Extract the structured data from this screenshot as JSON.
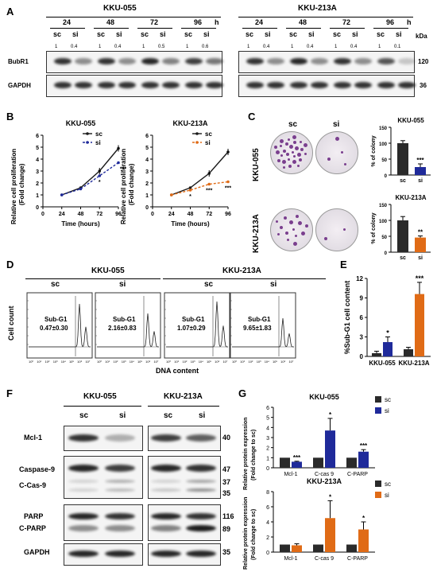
{
  "panels": {
    "A": "A",
    "B": "B",
    "C": "C",
    "D": "D",
    "E": "E",
    "F": "F",
    "G": "G"
  },
  "colors": {
    "sc": "#1a1a1a",
    "si_055": "#1f2a9a",
    "si_213": "#e06b16",
    "colony": "#7a3f8e"
  },
  "panelA": {
    "cell1": "KKU-055",
    "cell2": "KKU-213A",
    "times": [
      "24",
      "48",
      "72",
      "96"
    ],
    "h": "h",
    "sc": "sc",
    "si": "si",
    "kda": "kDa",
    "quant1": [
      "1",
      "0.4",
      "1",
      "0.4",
      "1",
      "0.5",
      "1",
      "0.6"
    ],
    "quant2": [
      "1",
      "0.4",
      "1",
      "0.4",
      "1",
      "0.4",
      "1",
      "0.1"
    ],
    "bubr1": "BubR1",
    "gapdh": "GAPDH",
    "kda_bubr1": "120",
    "kda_gapdh": "36"
  },
  "panelB": {
    "ylabel_1": "Relative cell proliferation",
    "ylabel_2": "(Fold change)",
    "xlabel": "Time (hours)",
    "chart_data": [
      {
        "type": "line",
        "title": "KKU-055",
        "x": [
          24,
          48,
          72,
          96
        ],
        "series": [
          {
            "name": "sc",
            "values": [
              1,
              1.6,
              3.0,
              4.9
            ]
          },
          {
            "name": "si",
            "values": [
              1,
              1.5,
              2.6,
              3.7
            ]
          }
        ],
        "ylim": [
          0,
          6
        ],
        "xticks": [
          "0",
          "24",
          "48",
          "72",
          "96"
        ],
        "yticks": [
          "0",
          "1",
          "2",
          "3",
          "4",
          "5",
          "6"
        ],
        "stars": [
          "*",
          "***"
        ]
      },
      {
        "type": "line",
        "title": "KKU-213A",
        "x": [
          24,
          48,
          72,
          96
        ],
        "series": [
          {
            "name": "sc",
            "values": [
              1,
              1.6,
              2.8,
              4.6
            ]
          },
          {
            "name": "si",
            "values": [
              1,
              1.4,
              1.9,
              2.1
            ]
          }
        ],
        "ylim": [
          0,
          6
        ],
        "xticks": [
          "0",
          "24",
          "48",
          "72",
          "96"
        ],
        "yticks": [
          "0",
          "1",
          "2",
          "3",
          "4",
          "5",
          "6"
        ],
        "stars": [
          "*",
          "***",
          "***"
        ]
      }
    ]
  },
  "panelC": {
    "sc": "sc",
    "si": "si",
    "row1": "KKU-055",
    "row2": "KKU-213A",
    "ylabel": "% of colony",
    "chart_data": [
      {
        "type": "bar",
        "title": "KKU-055",
        "categories": [
          "sc",
          "si"
        ],
        "values": [
          100,
          25
        ],
        "errors": [
          8,
          10
        ],
        "ylim": [
          0,
          150
        ],
        "yticks": [
          "0",
          "50",
          "100",
          "150"
        ],
        "star": "***"
      },
      {
        "type": "bar",
        "title": "KKU-213A",
        "categories": [
          "sc",
          "si"
        ],
        "values": [
          100,
          46
        ],
        "errors": [
          12,
          5
        ],
        "ylim": [
          0,
          150
        ],
        "yticks": [
          "0",
          "50",
          "100",
          "150"
        ],
        "star": "**"
      }
    ]
  },
  "panelD": {
    "cell1": "KKU-055",
    "cell2": "KKU-213A",
    "sc": "sc",
    "si": "si",
    "ylabel": "Cell count",
    "xlabel": "DNA content",
    "subg1": "Sub-G1",
    "values": [
      "0.47±0.30",
      "2.16±0.83",
      "1.07±0.29",
      "9.65±1.83"
    ],
    "xticks": [
      "10⁰",
      "10¹",
      "10²",
      "10³",
      "10⁴",
      "10⁵",
      "10⁶",
      "10⁷"
    ]
  },
  "panelE": {
    "chart_data": {
      "type": "bar",
      "ylabel": "%Sub-G1 cell content",
      "categories": [
        "KKU-055",
        "KKU-213A"
      ],
      "series": [
        {
          "name": "sc",
          "values": [
            0.5,
            1.1
          ]
        },
        {
          "name": "si",
          "values": [
            2.2,
            9.6
          ]
        }
      ],
      "errors": [
        [
          0.3,
          0.3
        ],
        [
          0.8,
          1.8
        ]
      ],
      "ylim": [
        0,
        12
      ],
      "yticks": [
        "0",
        "3",
        "6",
        "9",
        "12"
      ],
      "stars": [
        "*",
        "***"
      ]
    }
  },
  "panelF": {
    "cell1": "KKU-055",
    "cell2": "KKU-213A",
    "sc": "sc",
    "si": "si",
    "mcl1": "Mcl-1",
    "caspase9": "Caspase-9",
    "ccas9": "C-Cas-9",
    "parp": "PARP",
    "cparp": "C-PARP",
    "gapdh": "GAPDH",
    "kda": [
      "40",
      "47",
      "37",
      "35",
      "116",
      "89",
      "35"
    ]
  },
  "panelG": {
    "ylabel_1": "Relative protein expression",
    "ylabel_2": "(Fold change to sc)",
    "legend_sc": "sc",
    "legend_si": "si",
    "chart_data": [
      {
        "type": "bar",
        "title": "KKU-055",
        "categories": [
          "Mcl-1",
          "C-cas 9",
          "C-PARP"
        ],
        "series": [
          {
            "name": "sc",
            "values": [
              1,
              1,
              1
            ]
          },
          {
            "name": "si",
            "values": [
              0.6,
              3.7,
              1.6
            ]
          }
        ],
        "errors": [
          0.05,
          1.2,
          0.2
        ],
        "ylim": [
          0,
          6
        ],
        "yticks": [
          "0",
          "1",
          "2",
          "3",
          "4",
          "5",
          "6"
        ],
        "stars": [
          "***",
          "*",
          "***"
        ]
      },
      {
        "type": "bar",
        "title": "KKU-213A",
        "categories": [
          "Mcl-1",
          "C-cas 9",
          "C-PARP"
        ],
        "series": [
          {
            "name": "sc",
            "values": [
              1,
              1,
              1
            ]
          },
          {
            "name": "si",
            "values": [
              0.9,
              4.5,
              3.0
            ]
          }
        ],
        "errors": [
          0.2,
          2.3,
          1.0
        ],
        "ylim": [
          0,
          8
        ],
        "yticks": [
          "0",
          "2",
          "4",
          "6",
          "8"
        ],
        "stars": [
          "",
          "*",
          "*"
        ]
      }
    ]
  }
}
